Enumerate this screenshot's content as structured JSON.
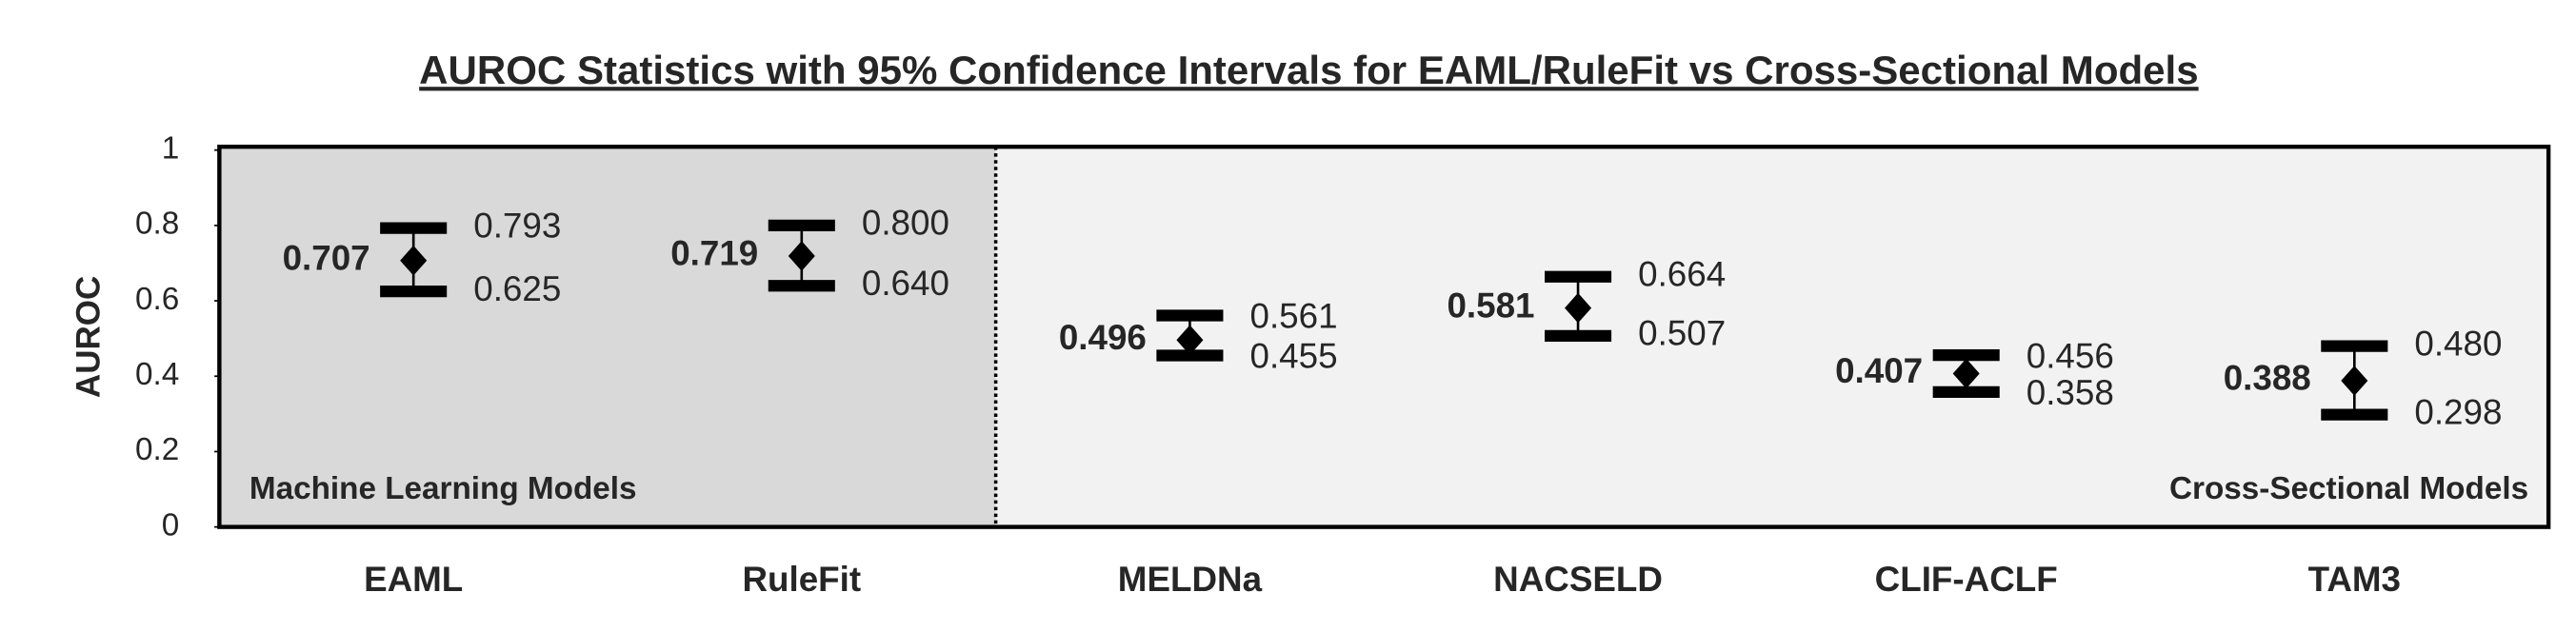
{
  "chart_data": {
    "type": "errorbar",
    "title": "AUROC Statistics with 95% Confidence Intervals for EAML/RuleFit vs Cross-Sectional Models",
    "y_label": "AUROC",
    "categories": [
      "EAML",
      "RuleFit",
      "MELDNa",
      "NACSELD",
      "CLIF-ACLF",
      "TAM3"
    ],
    "values": [
      0.707,
      0.719,
      0.496,
      0.581,
      0.407,
      0.388
    ],
    "value_labels": [
      "0.707",
      "0.719",
      "0.496",
      "0.581",
      "0.407",
      "0.388"
    ],
    "lower": {
      "values": [
        0.625,
        0.64,
        0.455,
        0.507,
        0.358,
        0.298
      ],
      "value_labels": [
        "0.625",
        "0.640",
        "0.455",
        "0.507",
        "0.358",
        "0.298"
      ]
    },
    "upper": {
      "values": [
        0.793,
        0.8,
        0.561,
        0.664,
        0.456,
        0.48
      ],
      "value_labels": [
        "0.793",
        "0.800",
        "0.561",
        "0.664",
        "0.456",
        "0.480"
      ]
    },
    "color": "#000000",
    "groups": [
      {
        "label": "Machine Learning Models",
        "members": [
          "EAML",
          "RuleFit"
        ],
        "color": "#d9d9d9",
        "label_corner": "bottom-left"
      },
      {
        "label": "Cross-Sectional Models",
        "members": [
          "MELDNa",
          "NACSELD",
          "CLIF-ACLF",
          "TAM3"
        ],
        "color": "#f2f2f2",
        "label_corner": "bottom-right"
      }
    ],
    "ylim": [
      0,
      1
    ],
    "yticks": [
      0,
      0.2,
      0.4,
      0.6,
      0.8,
      1
    ]
  }
}
